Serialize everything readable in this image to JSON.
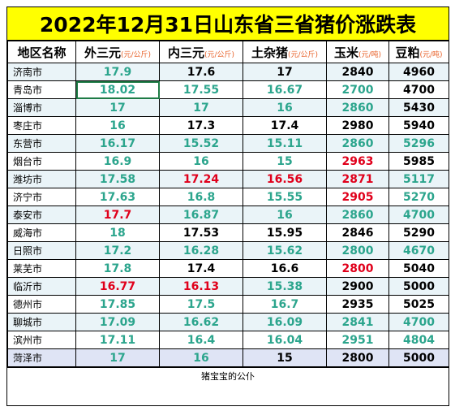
{
  "title": "2022年12月31日山东省三省猪价涨跌表",
  "headers": {
    "region": "地区名称",
    "wai": {
      "label": "外三元",
      "unit": "(元/公斤)"
    },
    "nei": {
      "label": "内三元",
      "unit": "(元/公斤)"
    },
    "tu": {
      "label": "土杂猪",
      "unit": "(元/公斤)"
    },
    "corn": {
      "label": "玉米",
      "unit": "(元/吨)"
    },
    "soy": {
      "label": "豆粕",
      "unit": "(元/吨)"
    }
  },
  "colors": {
    "up": "#e0001b",
    "down": "#2ca58d",
    "flat": "#000000",
    "title_bg": "#ffff00",
    "unit": "#e8622a"
  },
  "rows": [
    {
      "region": "济南市",
      "wai": "17.9",
      "wai_c": "green",
      "nei": "17.6",
      "nei_c": "black",
      "tu": "17",
      "tu_c": "black",
      "corn": "2840",
      "corn_c": "black",
      "soy": "4960",
      "soy_c": "black"
    },
    {
      "region": "青岛市",
      "wai": "18.02",
      "wai_c": "green",
      "nei": "17.55",
      "nei_c": "green",
      "tu": "16.67",
      "tu_c": "green",
      "corn": "2700",
      "corn_c": "green",
      "soy": "4700",
      "soy_c": "black"
    },
    {
      "region": "淄博市",
      "wai": "17",
      "wai_c": "green",
      "nei": "17",
      "nei_c": "green",
      "tu": "16",
      "tu_c": "green",
      "corn": "2860",
      "corn_c": "green",
      "soy": "5430",
      "soy_c": "black"
    },
    {
      "region": "枣庄市",
      "wai": "16",
      "wai_c": "green",
      "nei": "17.3",
      "nei_c": "black",
      "tu": "17.4",
      "tu_c": "black",
      "corn": "2980",
      "corn_c": "black",
      "soy": "5940",
      "soy_c": "black"
    },
    {
      "region": "东营市",
      "wai": "16.17",
      "wai_c": "green",
      "nei": "15.52",
      "nei_c": "green",
      "tu": "15.11",
      "tu_c": "green",
      "corn": "2860",
      "corn_c": "green",
      "soy": "5296",
      "soy_c": "green"
    },
    {
      "region": "烟台市",
      "wai": "16.9",
      "wai_c": "green",
      "nei": "16",
      "nei_c": "green",
      "tu": "15",
      "tu_c": "green",
      "corn": "2963",
      "corn_c": "red",
      "soy": "5985",
      "soy_c": "black"
    },
    {
      "region": "潍坊市",
      "wai": "17.58",
      "wai_c": "green",
      "nei": "17.24",
      "nei_c": "red",
      "tu": "16.56",
      "tu_c": "red",
      "corn": "2871",
      "corn_c": "red",
      "soy": "5117",
      "soy_c": "green"
    },
    {
      "region": "济宁市",
      "wai": "17.63",
      "wai_c": "green",
      "nei": "16.8",
      "nei_c": "green",
      "tu": "15.55",
      "tu_c": "green",
      "corn": "2905",
      "corn_c": "red",
      "soy": "5270",
      "soy_c": "green"
    },
    {
      "region": "泰安市",
      "wai": "17.7",
      "wai_c": "red",
      "nei": "16.87",
      "nei_c": "green",
      "tu": "16",
      "tu_c": "green",
      "corn": "2860",
      "corn_c": "green",
      "soy": "4700",
      "soy_c": "green"
    },
    {
      "region": "威海市",
      "wai": "18",
      "wai_c": "green",
      "nei": "17.53",
      "nei_c": "black",
      "tu": "15.95",
      "tu_c": "black",
      "corn": "2846",
      "corn_c": "black",
      "soy": "5290",
      "soy_c": "black"
    },
    {
      "region": "日照市",
      "wai": "17.2",
      "wai_c": "green",
      "nei": "16.28",
      "nei_c": "green",
      "tu": "15.62",
      "tu_c": "green",
      "corn": "2800",
      "corn_c": "green",
      "soy": "4670",
      "soy_c": "green"
    },
    {
      "region": "莱芜市",
      "wai": "17.8",
      "wai_c": "green",
      "nei": "17.4",
      "nei_c": "black",
      "tu": "16.6",
      "tu_c": "black",
      "corn": "2800",
      "corn_c": "red",
      "soy": "5040",
      "soy_c": "black"
    },
    {
      "region": "临沂市",
      "wai": "16.77",
      "wai_c": "red",
      "nei": "16.13",
      "nei_c": "red",
      "tu": "15.38",
      "tu_c": "green",
      "corn": "2900",
      "corn_c": "black",
      "soy": "5000",
      "soy_c": "black"
    },
    {
      "region": "德州市",
      "wai": "17.85",
      "wai_c": "green",
      "nei": "17.5",
      "nei_c": "green",
      "tu": "16.7",
      "tu_c": "green",
      "corn": "2935",
      "corn_c": "black",
      "soy": "5025",
      "soy_c": "black"
    },
    {
      "region": "聊城市",
      "wai": "17.09",
      "wai_c": "green",
      "nei": "16.62",
      "nei_c": "green",
      "tu": "16.09",
      "tu_c": "green",
      "corn": "2841",
      "corn_c": "green",
      "soy": "4700",
      "soy_c": "green"
    },
    {
      "region": "滨州市",
      "wai": "17.11",
      "wai_c": "green",
      "nei": "16.4",
      "nei_c": "green",
      "tu": "16.04",
      "tu_c": "green",
      "corn": "2951",
      "corn_c": "green",
      "soy": "4804",
      "soy_c": "green"
    },
    {
      "region": "菏泽市",
      "wai": "17",
      "wai_c": "green",
      "nei": "16",
      "nei_c": "green",
      "tu": "15",
      "tu_c": "black",
      "corn": "2800",
      "corn_c": "black",
      "soy": "5000",
      "soy_c": "black"
    }
  ],
  "footer": "猪宝宝的公仆"
}
